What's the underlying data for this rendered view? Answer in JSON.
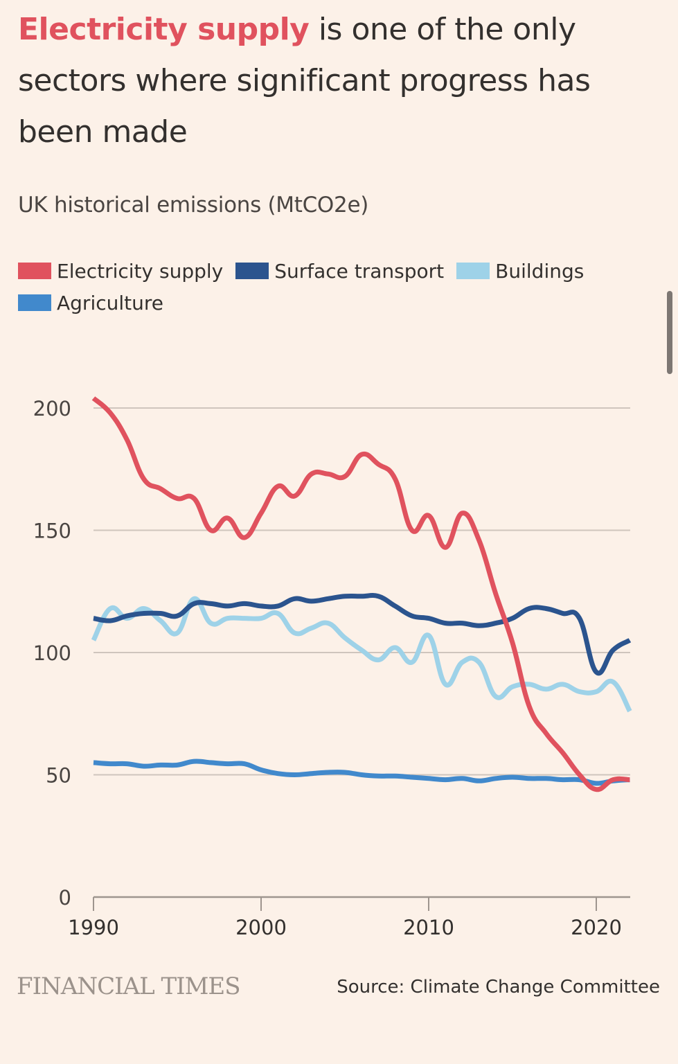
{
  "headline": {
    "highlight": "Electricity supply",
    "rest": " is one of the only sectors where significant progress has been made",
    "highlight_color": "#e0525e"
  },
  "subtitle": "UK historical emissions (MtCO2e)",
  "footer": {
    "logo": "FINANCIAL TIMES",
    "source": "Source: Climate Change Committee"
  },
  "chart_data": {
    "type": "line",
    "title": "UK historical emissions (MtCO2e)",
    "xlabel": "",
    "ylabel": "MtCO2e",
    "xlim": [
      1990,
      2022
    ],
    "ylim": [
      0,
      200
    ],
    "x_ticks": [
      1990,
      2000,
      2010,
      2020
    ],
    "x_tick_labels": [
      "1990",
      "2000",
      "2010",
      "2020"
    ],
    "y_ticks": [
      0,
      50,
      100,
      150,
      200
    ],
    "y_tick_labels": [
      "0",
      "50",
      "100",
      "150",
      "200"
    ],
    "grid": true,
    "legend_position": "top-left",
    "x": [
      1990,
      1991,
      1992,
      1993,
      1994,
      1995,
      1996,
      1997,
      1998,
      1999,
      2000,
      2001,
      2002,
      2003,
      2004,
      2005,
      2006,
      2007,
      2008,
      2009,
      2010,
      2011,
      2012,
      2013,
      2014,
      2015,
      2016,
      2017,
      2018,
      2019,
      2020,
      2021,
      2022
    ],
    "series": [
      {
        "name": "Electricity supply",
        "color": "#e0525e",
        "values": [
          204,
          198,
          187,
          171,
          167,
          163,
          163,
          150,
          155,
          147,
          157,
          168,
          164,
          173,
          173,
          172,
          181,
          177,
          171,
          150,
          156,
          143,
          157,
          146,
          124,
          104,
          78,
          67,
          59,
          50,
          44,
          48,
          48
        ]
      },
      {
        "name": "Surface transport",
        "color": "#2b548e",
        "values": [
          114,
          113,
          115,
          116,
          116,
          115,
          120,
          120,
          119,
          120,
          119,
          119,
          122,
          121,
          122,
          123,
          123,
          123,
          119,
          115,
          114,
          112,
          112,
          111,
          112,
          114,
          118,
          118,
          116,
          114,
          92,
          101,
          105
        ]
      },
      {
        "name": "Buildings",
        "color": "#9ed2e8",
        "values": [
          105,
          118,
          114,
          118,
          113,
          108,
          122,
          112,
          114,
          114,
          114,
          116,
          108,
          110,
          112,
          106,
          101,
          97,
          102,
          96,
          107,
          87,
          96,
          96,
          82,
          86,
          87,
          85,
          87,
          84,
          84,
          88,
          76
        ]
      },
      {
        "name": "Agriculture",
        "color": "#4189cc",
        "values": [
          55,
          54.5,
          54.5,
          53.5,
          54,
          54,
          55.5,
          55,
          54.5,
          54.5,
          52,
          50.5,
          50,
          50.5,
          51,
          51,
          50,
          49.5,
          49.5,
          49,
          48.5,
          48,
          48.5,
          47.5,
          48.5,
          49,
          48.5,
          48.5,
          48,
          48,
          46.5,
          47.5,
          48
        ]
      }
    ]
  }
}
